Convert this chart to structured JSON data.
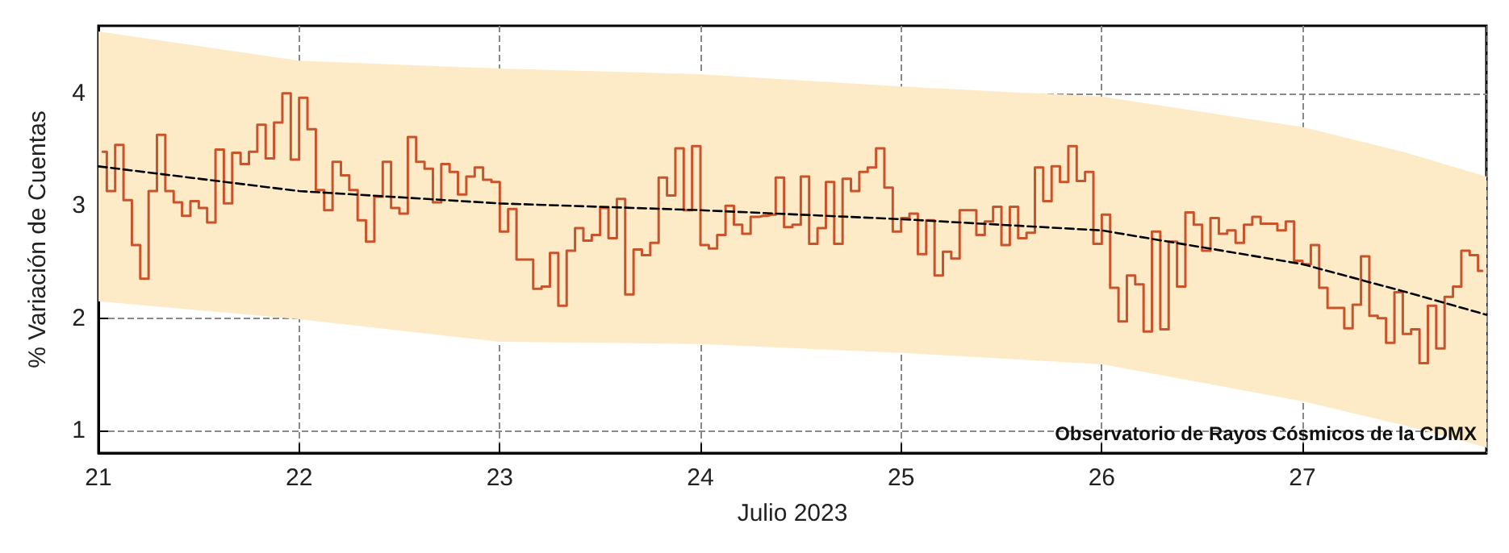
{
  "chart_data": {
    "type": "step",
    "xlabel": "Julio 2023",
    "ylabel": "% Variación de Cuentas",
    "annotations": [
      "Observatorio de Rayos Cósmicos de la CDMX"
    ],
    "xlim": [
      "2023-07-21T00:00",
      "2023-07-27T22:00"
    ],
    "xticks": [
      {
        "value": "2023-07-21",
        "label": "21"
      },
      {
        "value": "2023-07-22",
        "label": "22"
      },
      {
        "value": "2023-07-23",
        "label": "23"
      },
      {
        "value": "2023-07-24",
        "label": "24"
      },
      {
        "value": "2023-07-25",
        "label": "25"
      },
      {
        "value": "2023-07-26",
        "label": "26"
      },
      {
        "value": "2023-07-27",
        "label": "27"
      }
    ],
    "ylim": [
      0.8,
      4.6
    ],
    "yticks": [
      1,
      2,
      3,
      4
    ],
    "grid": true,
    "marker": "none",
    "x": [
      "2023-07-21T00:30",
      "2023-07-21T01:30",
      "2023-07-21T02:30",
      "2023-07-21T03:30",
      "2023-07-21T04:30",
      "2023-07-21T05:30",
      "2023-07-21T06:30",
      "2023-07-21T07:30",
      "2023-07-21T08:30",
      "2023-07-21T09:30",
      "2023-07-21T10:30",
      "2023-07-21T11:30",
      "2023-07-21T12:30",
      "2023-07-21T13:30",
      "2023-07-21T14:30",
      "2023-07-21T15:30",
      "2023-07-21T16:30",
      "2023-07-21T17:30",
      "2023-07-21T18:30",
      "2023-07-21T19:30",
      "2023-07-21T20:30",
      "2023-07-21T21:30",
      "2023-07-21T22:30",
      "2023-07-21T23:30",
      "2023-07-22T00:30",
      "2023-07-22T01:30",
      "2023-07-22T02:30",
      "2023-07-22T03:30",
      "2023-07-22T04:30",
      "2023-07-22T05:30",
      "2023-07-22T06:30",
      "2023-07-22T07:30",
      "2023-07-22T08:30",
      "2023-07-22T09:30",
      "2023-07-22T10:30",
      "2023-07-22T11:30",
      "2023-07-22T12:30",
      "2023-07-22T13:30",
      "2023-07-22T14:30",
      "2023-07-22T15:30",
      "2023-07-22T16:30",
      "2023-07-22T17:30",
      "2023-07-22T18:30",
      "2023-07-22T19:30",
      "2023-07-22T20:30",
      "2023-07-22T21:30",
      "2023-07-22T22:30",
      "2023-07-22T23:30",
      "2023-07-23T00:30",
      "2023-07-23T01:30",
      "2023-07-23T02:30",
      "2023-07-23T03:30",
      "2023-07-23T04:30",
      "2023-07-23T05:30",
      "2023-07-23T06:30",
      "2023-07-23T07:30",
      "2023-07-23T08:30",
      "2023-07-23T09:30",
      "2023-07-23T10:30",
      "2023-07-23T11:30",
      "2023-07-23T12:30",
      "2023-07-23T13:30",
      "2023-07-23T14:30",
      "2023-07-23T15:30",
      "2023-07-23T16:30",
      "2023-07-23T17:30",
      "2023-07-23T18:30",
      "2023-07-23T19:30",
      "2023-07-23T20:30",
      "2023-07-23T21:30",
      "2023-07-23T22:30",
      "2023-07-23T23:30",
      "2023-07-24T00:30",
      "2023-07-24T01:30",
      "2023-07-24T02:30",
      "2023-07-24T03:30",
      "2023-07-24T04:30",
      "2023-07-24T05:30",
      "2023-07-24T06:30",
      "2023-07-24T07:30",
      "2023-07-24T08:30",
      "2023-07-24T09:30",
      "2023-07-24T10:30",
      "2023-07-24T11:30",
      "2023-07-24T12:30",
      "2023-07-24T13:30",
      "2023-07-24T14:30",
      "2023-07-24T15:30",
      "2023-07-24T16:30",
      "2023-07-24T17:30",
      "2023-07-24T18:30",
      "2023-07-24T19:30",
      "2023-07-24T20:30",
      "2023-07-24T21:30",
      "2023-07-24T22:30",
      "2023-07-24T23:30",
      "2023-07-25T00:30",
      "2023-07-25T01:30",
      "2023-07-25T02:30",
      "2023-07-25T03:30",
      "2023-07-25T04:30",
      "2023-07-25T05:30",
      "2023-07-25T06:30",
      "2023-07-25T07:30",
      "2023-07-25T08:30",
      "2023-07-25T09:30",
      "2023-07-25T10:30",
      "2023-07-25T11:30",
      "2023-07-25T12:30",
      "2023-07-25T13:30",
      "2023-07-25T14:30",
      "2023-07-25T15:30",
      "2023-07-25T16:30",
      "2023-07-25T17:30",
      "2023-07-25T18:30",
      "2023-07-25T19:30",
      "2023-07-25T20:30",
      "2023-07-25T21:30",
      "2023-07-25T22:30",
      "2023-07-25T23:30",
      "2023-07-26T00:30",
      "2023-07-26T01:30",
      "2023-07-26T02:30",
      "2023-07-26T03:30",
      "2023-07-26T04:30",
      "2023-07-26T05:30",
      "2023-07-26T06:30",
      "2023-07-26T07:30",
      "2023-07-26T08:30",
      "2023-07-26T09:30",
      "2023-07-26T10:30",
      "2023-07-26T11:30",
      "2023-07-26T12:30",
      "2023-07-26T13:30",
      "2023-07-26T14:30",
      "2023-07-26T15:30",
      "2023-07-26T16:30",
      "2023-07-26T17:30",
      "2023-07-26T18:30",
      "2023-07-26T19:30",
      "2023-07-26T20:30",
      "2023-07-26T21:30",
      "2023-07-26T22:30",
      "2023-07-26T23:30",
      "2023-07-27T00:30",
      "2023-07-27T01:30",
      "2023-07-27T02:30",
      "2023-07-27T03:30",
      "2023-07-27T04:30",
      "2023-07-27T05:30",
      "2023-07-27T06:30",
      "2023-07-27T07:30",
      "2023-07-27T08:30",
      "2023-07-27T09:30",
      "2023-07-27T10:30",
      "2023-07-27T11:30",
      "2023-07-27T12:30",
      "2023-07-27T13:30",
      "2023-07-27T14:30",
      "2023-07-27T15:30",
      "2023-07-27T16:30",
      "2023-07-27T17:30",
      "2023-07-27T18:30",
      "2023-07-27T19:30",
      "2023-07-27T20:30",
      "2023-07-27T21:30"
    ],
    "series": [
      {
        "color": "#c9532b",
        "values": [
          3.48,
          3.13,
          3.54,
          3.05,
          2.65,
          2.35,
          3.13,
          3.63,
          3.13,
          3.03,
          2.91,
          3.04,
          2.98,
          2.85,
          3.5,
          3.02,
          3.47,
          3.37,
          3.48,
          3.72,
          3.42,
          3.74,
          4.0,
          3.41,
          3.96,
          3.68,
          3.14,
          2.96,
          3.39,
          3.27,
          3.14,
          2.87,
          2.68,
          3.08,
          3.39,
          2.98,
          2.93,
          3.61,
          3.39,
          3.33,
          3.03,
          3.37,
          3.3,
          3.1,
          3.26,
          3.34,
          3.23,
          3.21,
          2.77,
          2.97,
          2.52,
          2.52,
          2.26,
          2.28,
          2.58,
          2.11,
          2.6,
          2.8,
          2.69,
          2.74,
          2.98,
          2.71,
          3.06,
          2.21,
          2.61,
          2.56,
          2.67,
          3.25,
          3.09,
          3.51,
          2.96,
          3.53,
          2.65,
          2.62,
          2.74,
          3.0,
          2.83,
          2.75,
          2.9,
          2.91,
          2.92,
          3.25,
          2.81,
          2.83,
          3.26,
          2.66,
          2.8,
          3.21,
          2.66,
          3.24,
          3.13,
          3.3,
          3.34,
          3.51,
          3.16,
          2.77,
          2.89,
          2.93,
          2.57,
          2.87,
          2.38,
          2.59,
          2.53,
          2.96,
          2.96,
          2.74,
          2.86,
          2.99,
          2.65,
          2.99,
          2.71,
          2.76,
          3.34,
          3.04,
          3.35,
          3.21,
          3.53,
          3.22,
          3.3,
          2.66,
          2.92,
          2.27,
          1.97,
          2.38,
          2.3,
          1.88,
          2.77,
          1.9,
          2.68,
          2.28,
          2.94,
          2.83,
          2.6,
          2.89,
          2.75,
          2.78,
          2.67,
          2.83,
          2.9,
          2.84,
          2.84,
          2.78,
          2.86,
          2.51,
          2.48,
          2.65,
          2.27,
          2.09,
          2.09,
          1.91,
          2.12,
          2.55,
          2.02,
          2.0,
          1.78,
          2.23,
          1.86,
          1.9,
          1.6,
          2.11,
          1.73,
          2.19,
          2.28,
          2.6,
          2.56,
          2.42
        ]
      },
      {
        "type": "line",
        "color": "#000000",
        "line_style": "dashed",
        "x": [
          "2023-07-21T00:00",
          "2023-07-22T00:00",
          "2023-07-23T00:00",
          "2023-07-24T00:00",
          "2023-07-25T00:00",
          "2023-07-26T00:00",
          "2023-07-27T00:00",
          "2023-07-27T12:00",
          "2023-07-27T22:00"
        ],
        "values": [
          3.35,
          3.13,
          3.02,
          2.96,
          2.88,
          2.78,
          2.48,
          2.24,
          2.03
        ],
        "lower": [
          2.15,
          1.99,
          1.79,
          1.77,
          1.69,
          1.59,
          1.26,
          1.05,
          0.85
        ],
        "upper": [
          4.55,
          4.29,
          4.22,
          4.17,
          4.06,
          3.97,
          3.7,
          3.48,
          3.26
        ]
      }
    ]
  }
}
